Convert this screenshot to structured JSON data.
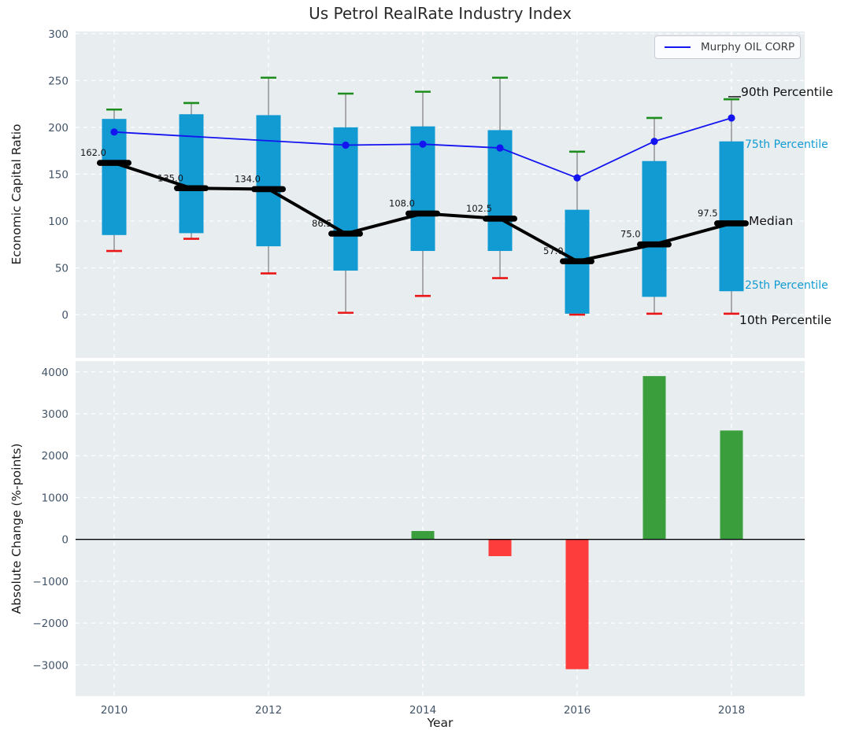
{
  "title": "Us Petrol RealRate Industry Index",
  "legend": {
    "label": "Murphy OIL CORP"
  },
  "annotations": {
    "p90": "90th Percentile",
    "p75": "75th Percentile",
    "median": "Median",
    "p25": "25th Percentile",
    "p10": "10th Percentile"
  },
  "colors": {
    "plot_bg": "#e8edf0",
    "grid": "#ffffff",
    "box": "#129bd2",
    "green_cap": "#1d8e1d",
    "red_cap": "#ea1515",
    "murphy_line": "#1414f0",
    "median": "#000000",
    "whisker": "#7a7a7a",
    "bar_positive": "#3a9e3c",
    "bar_negative": "#fd3c3c",
    "tick_label": "#425468",
    "zero_line": "#000000"
  },
  "chart_data": [
    {
      "type": "box-percentiles",
      "title": "Us Petrol RealRate Industry Index",
      "ylabel": "Economic Capital Ratio",
      "x": [
        2010,
        2011,
        2012,
        2013,
        2014,
        2015,
        2016,
        2017,
        2018
      ],
      "series": [
        {
          "name": "90th Percentile",
          "values": [
            219,
            226,
            253,
            236,
            238,
            253,
            174,
            210,
            230
          ]
        },
        {
          "name": "75th Percentile",
          "values": [
            209,
            214,
            213,
            200,
            201,
            197,
            112,
            164,
            185
          ]
        },
        {
          "name": "Median",
          "values": [
            162.0,
            135.0,
            134.0,
            86.5,
            108.0,
            102.5,
            57.0,
            75.0,
            97.5
          ]
        },
        {
          "name": "25th Percentile",
          "values": [
            85,
            87,
            73,
            47,
            68,
            68,
            1,
            19,
            25
          ]
        },
        {
          "name": "10th Percentile",
          "values": [
            68,
            81,
            44,
            2,
            20,
            39,
            0,
            1,
            1
          ]
        }
      ],
      "median_labels": [
        "162.0",
        "135.0",
        "134.0",
        "86.5",
        "108.0",
        "102.5",
        "57.0",
        "75.0",
        "97.5"
      ],
      "murphy": {
        "name": "Murphy OIL CORP",
        "x": [
          2010,
          2013,
          2014,
          2015,
          2016,
          2017,
          2018
        ],
        "values": [
          195,
          181,
          182,
          178,
          146,
          185,
          210
        ]
      },
      "ylim": [
        -46,
        302
      ],
      "yticks": [
        0,
        50,
        100,
        150,
        200,
        250,
        300
      ],
      "grid": true,
      "legend_position": "upper right"
    },
    {
      "type": "bar",
      "ylabel": "Absolute Change (%-points)",
      "xlabel": "Year",
      "x": [
        2010,
        2011,
        2012,
        2013,
        2014,
        2015,
        2016,
        2017,
        2018
      ],
      "values": [
        null,
        null,
        null,
        null,
        200,
        -400,
        -3100,
        3900,
        2600
      ],
      "ylim": [
        -3750,
        4260
      ],
      "yticks": [
        -3000,
        -2000,
        -1000,
        0,
        1000,
        2000,
        3000,
        4000
      ],
      "xticks": [
        2010,
        2012,
        2014,
        2016,
        2018
      ],
      "grid": true
    }
  ]
}
